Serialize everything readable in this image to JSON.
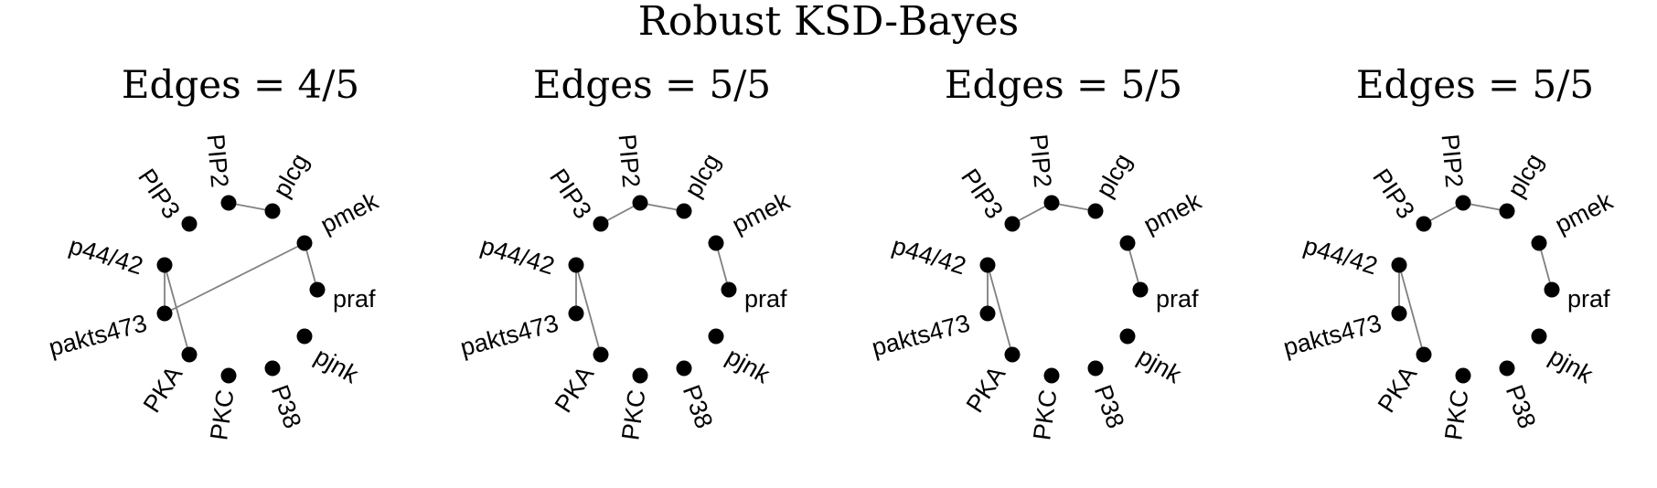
{
  "figure_title": "Robust KSD-Bayes",
  "nodes": [
    "PIP2",
    "plcg",
    "pmek",
    "praf",
    "pjnk",
    "P38",
    "PKC",
    "PKA",
    "pakts473",
    "p44/42",
    "PIP3"
  ],
  "panels": [
    {
      "title": "Edges = 4/5",
      "edges": [
        [
          "PIP2",
          "plcg"
        ],
        [
          "pmek",
          "praf"
        ],
        [
          "pmek",
          "pakts473"
        ],
        [
          "p44/42",
          "pakts473"
        ],
        [
          "p44/42",
          "PKA"
        ]
      ]
    },
    {
      "title": "Edges = 5/5",
      "edges": [
        [
          "PIP3",
          "PIP2"
        ],
        [
          "PIP2",
          "plcg"
        ],
        [
          "pmek",
          "praf"
        ],
        [
          "p44/42",
          "pakts473"
        ],
        [
          "p44/42",
          "PKA"
        ]
      ]
    },
    {
      "title": "Edges = 5/5",
      "edges": [
        [
          "PIP3",
          "PIP2"
        ],
        [
          "PIP2",
          "plcg"
        ],
        [
          "pmek",
          "praf"
        ],
        [
          "p44/42",
          "pakts473"
        ],
        [
          "p44/42",
          "PKA"
        ]
      ]
    },
    {
      "title": "Edges = 5/5",
      "edges": [
        [
          "PIP3",
          "PIP2"
        ],
        [
          "PIP2",
          "plcg"
        ],
        [
          "pmek",
          "praf"
        ],
        [
          "p44/42",
          "pakts473"
        ],
        [
          "p44/42",
          "PKA"
        ]
      ]
    }
  ]
}
